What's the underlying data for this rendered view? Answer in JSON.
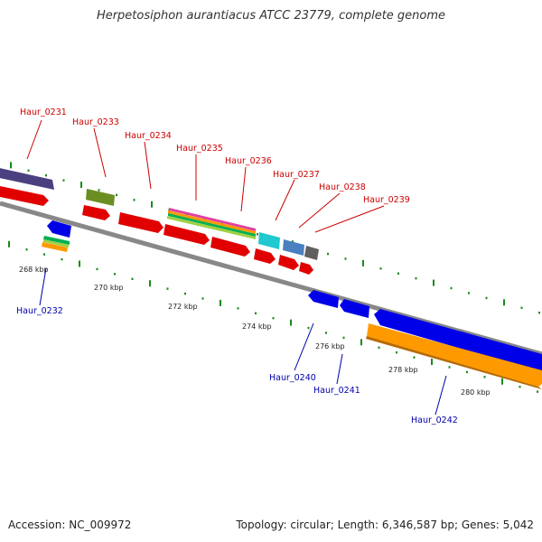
{
  "title": "Herpetosiphon aurantiacus ATCC 23779, complete genome",
  "footer": {
    "accession": "Accession: NC_009972",
    "summary": "Topology: circular; Length: 6,346,587 bp; Genes: 5,042"
  },
  "colors": {
    "upper_label": "#cc0000",
    "lower_label": "#0000aa",
    "backbone": "#888888",
    "tick": "#1a8a1a"
  },
  "scale_labels": [
    "268 kbp",
    "270 kbp",
    "272 kbp",
    "274 kbp",
    "276 kbp",
    "278 kbp",
    "280 kbp"
  ],
  "genes_upper": [
    {
      "name": "Haur_0231"
    },
    {
      "name": "Haur_0233"
    },
    {
      "name": "Haur_0234"
    },
    {
      "name": "Haur_0235"
    },
    {
      "name": "Haur_0236"
    },
    {
      "name": "Haur_0237"
    },
    {
      "name": "Haur_0238"
    },
    {
      "name": "Haur_0239"
    }
  ],
  "genes_lower": [
    {
      "name": "Haur_0232"
    },
    {
      "name": "Haur_0240"
    },
    {
      "name": "Haur_0241"
    },
    {
      "name": "Haur_0242"
    }
  ]
}
